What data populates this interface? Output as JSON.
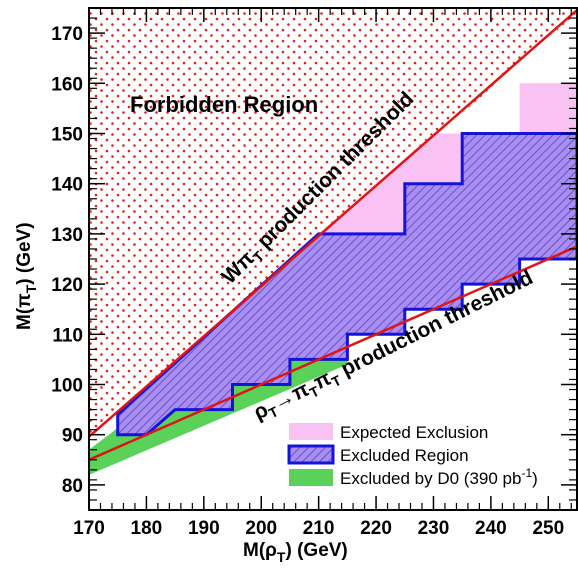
{
  "chart_data": {
    "type": "area",
    "xlabel": "M(ρT) (GeV)",
    "ylabel": "M(πT) (GeV)",
    "xlim": [
      170,
      255
    ],
    "ylim": [
      75,
      175
    ],
    "x_ticks": [
      170,
      180,
      190,
      200,
      210,
      220,
      230,
      240,
      250
    ],
    "y_ticks": [
      80,
      90,
      100,
      110,
      120,
      130,
      140,
      150,
      160,
      170
    ],
    "grid": false,
    "legend_position": "bottom-right",
    "colors": {
      "forbidden": "#e0201b",
      "threshold_lines": "#e01414",
      "expected": "#f9c2f3",
      "excluded_fill": "#a78ef0",
      "excluded_border": "#1414d8",
      "d0": "#5ad25a"
    },
    "annotations": {
      "forbidden": "Forbidden Region",
      "w_threshold": "WπT production threshold",
      "rho_threshold": "ρT→πTπT production threshold"
    },
    "series": [
      {
        "name": "Forbidden Region",
        "kind": "region",
        "points": [
          [
            170,
            89
          ],
          [
            255,
            174
          ],
          [
            255,
            175
          ],
          [
            170,
            175
          ]
        ]
      },
      {
        "name": "W πT production threshold",
        "kind": "line",
        "points": [
          [
            170,
            89.6
          ],
          [
            255,
            174.6
          ]
        ]
      },
      {
        "name": "ρT → πT πT production threshold",
        "kind": "line",
        "points": [
          [
            170,
            85
          ],
          [
            255,
            127.5
          ]
        ]
      },
      {
        "name": "Expected Exclusion",
        "kind": "region",
        "points": [
          [
            210,
            130
          ],
          [
            215,
            135
          ],
          [
            225,
            145
          ],
          [
            230,
            150
          ],
          [
            245,
            150
          ],
          [
            245,
            160
          ],
          [
            255,
            160
          ],
          [
            255,
            150
          ],
          [
            235,
            150
          ],
          [
            235,
            140
          ],
          [
            225,
            140
          ],
          [
            225,
            130
          ]
        ]
      },
      {
        "name": "Excluded Region",
        "kind": "region",
        "points": [
          [
            175,
            94
          ],
          [
            210,
            130
          ],
          [
            225,
            130
          ],
          [
            225,
            140
          ],
          [
            235,
            140
          ],
          [
            235,
            150
          ],
          [
            255,
            150
          ],
          [
            255,
            125
          ],
          [
            245,
            125
          ],
          [
            245,
            120
          ],
          [
            235,
            120
          ],
          [
            235,
            115
          ],
          [
            225,
            115
          ],
          [
            225,
            110
          ],
          [
            215,
            110
          ],
          [
            215,
            105
          ],
          [
            205,
            105
          ],
          [
            205,
            100
          ],
          [
            195,
            100
          ],
          [
            195,
            95
          ],
          [
            185,
            95
          ],
          [
            180,
            90
          ],
          [
            175,
            90
          ]
        ]
      },
      {
        "name": "Excluded by D0 (390 pb-1)",
        "kind": "region",
        "points": [
          [
            170,
            82
          ],
          [
            215,
            104
          ],
          [
            215,
            114
          ],
          [
            212,
            118
          ],
          [
            208,
            120
          ],
          [
            170,
            87
          ]
        ]
      }
    ],
    "legend": [
      {
        "label": "Expected Exclusion",
        "style": "expected"
      },
      {
        "label": "Excluded Region",
        "style": "excluded"
      },
      {
        "label": "Excluded by D0 (390 pb",
        "sup": "-1",
        "suffix": ")",
        "style": "d0"
      }
    ]
  }
}
